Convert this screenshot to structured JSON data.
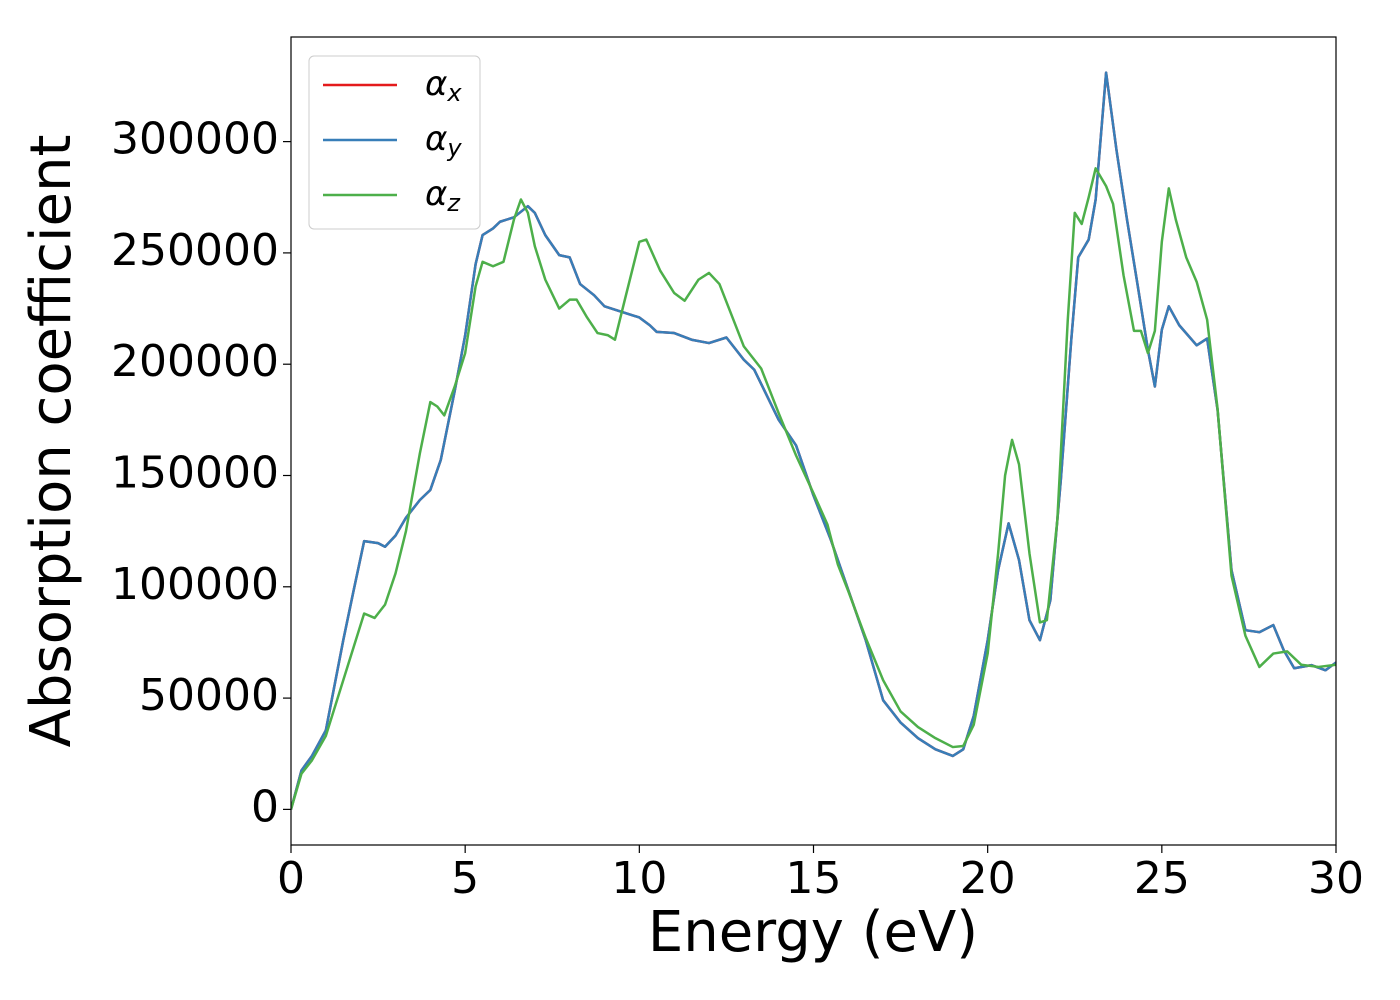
{
  "chart_data": {
    "type": "line",
    "xlabel": "Energy (eV)",
    "ylabel": "Absorption coefficient",
    "xlim": [
      0,
      30
    ],
    "xticks": [
      0,
      5,
      10,
      15,
      20,
      25,
      30
    ],
    "ylim": [
      -16000,
      347000
    ],
    "yticks": [
      0,
      50000,
      100000,
      150000,
      200000,
      250000,
      300000
    ],
    "legend": "upper left",
    "series": [
      {
        "name": "αx",
        "color": "#e41a1c",
        "x": [
          0,
          0.3,
          0.6,
          1.0,
          1.5,
          1.8,
          2.1,
          2.5,
          2.7,
          3.0,
          3.3,
          3.7,
          4.0,
          4.3,
          4.7,
          5.0,
          5.3,
          5.5,
          5.8,
          6.0,
          6.4,
          6.8,
          7.0,
          7.3,
          7.7,
          8.0,
          8.3,
          8.7,
          9.0,
          9.5,
          10.0,
          10.3,
          10.5,
          11.0,
          11.5,
          12.0,
          12.5,
          13.0,
          13.3,
          14.0,
          14.5,
          15.0,
          15.5,
          16.0,
          16.5,
          17.0,
          17.5,
          18.0,
          18.5,
          19.0,
          19.3,
          19.6,
          20.0,
          20.3,
          20.6,
          20.9,
          21.2,
          21.5,
          21.8,
          22.1,
          22.4,
          22.6,
          22.9,
          23.1,
          23.4,
          23.7,
          24.0,
          24.3,
          24.6,
          24.8,
          25.0,
          25.2,
          25.5,
          26.0,
          26.3,
          26.6,
          27.0,
          27.4,
          27.8,
          28.2,
          28.5,
          28.8,
          29.3,
          29.7,
          30.0
        ],
        "values": [
          0,
          17500,
          24000,
          35500,
          76000,
          98500,
          120500,
          119600,
          118000,
          123000,
          131000,
          139000,
          143500,
          157000,
          188000,
          213000,
          245000,
          258000,
          261000,
          264000,
          266000,
          271000,
          268000,
          258000,
          249000,
          248000,
          236000,
          231000,
          226000,
          223500,
          221000,
          217500,
          214500,
          214000,
          211000,
          209500,
          212000,
          202000,
          197500,
          175000,
          163500,
          141000,
          121000,
          98500,
          76000,
          49000,
          39000,
          32000,
          27000,
          24000,
          27000,
          42000,
          76000,
          107500,
          128500,
          112000,
          85000,
          76000,
          94000,
          148000,
          211000,
          248000,
          256000,
          274000,
          331000,
          296000,
          265000,
          236000,
          206500,
          190000,
          215500,
          226000,
          217500,
          208500,
          211500,
          179500,
          107500,
          80500,
          79600,
          82800,
          71500,
          63400,
          64800,
          62500,
          66000
        ]
      },
      {
        "name": "αy",
        "color": "#377eb8",
        "x": [
          0,
          0.3,
          0.6,
          1.0,
          1.5,
          1.8,
          2.1,
          2.5,
          2.7,
          3.0,
          3.3,
          3.7,
          4.0,
          4.3,
          4.7,
          5.0,
          5.3,
          5.5,
          5.8,
          6.0,
          6.4,
          6.8,
          7.0,
          7.3,
          7.7,
          8.0,
          8.3,
          8.7,
          9.0,
          9.5,
          10.0,
          10.3,
          10.5,
          11.0,
          11.5,
          12.0,
          12.5,
          13.0,
          13.3,
          14.0,
          14.5,
          15.0,
          15.5,
          16.0,
          16.5,
          17.0,
          17.5,
          18.0,
          18.5,
          19.0,
          19.3,
          19.6,
          20.0,
          20.3,
          20.6,
          20.9,
          21.2,
          21.5,
          21.8,
          22.1,
          22.4,
          22.6,
          22.9,
          23.1,
          23.4,
          23.7,
          24.0,
          24.3,
          24.6,
          24.8,
          25.0,
          25.2,
          25.5,
          26.0,
          26.3,
          26.6,
          27.0,
          27.4,
          27.8,
          28.2,
          28.5,
          28.8,
          29.3,
          29.7,
          30.0
        ],
        "values": [
          0,
          17500,
          24000,
          35500,
          76000,
          98500,
          120500,
          119600,
          118000,
          123000,
          131000,
          139000,
          143500,
          157000,
          188000,
          213000,
          245000,
          258000,
          261000,
          264000,
          266000,
          271000,
          268000,
          258000,
          249000,
          248000,
          236000,
          231000,
          226000,
          223500,
          221000,
          217500,
          214500,
          214000,
          211000,
          209500,
          212000,
          202000,
          197500,
          175000,
          163500,
          141000,
          121000,
          98500,
          76000,
          49000,
          39000,
          32000,
          27000,
          24000,
          27000,
          42000,
          76000,
          107500,
          128500,
          112000,
          85000,
          76000,
          94000,
          148000,
          211000,
          248000,
          256000,
          274000,
          331000,
          296000,
          265000,
          236000,
          206500,
          190000,
          215500,
          226000,
          217500,
          208500,
          211500,
          179500,
          107500,
          80500,
          79600,
          82800,
          71500,
          63400,
          64800,
          62500,
          66000
        ]
      },
      {
        "name": "αz",
        "color": "#4daf4a",
        "x": [
          0,
          0.3,
          0.6,
          1.0,
          1.5,
          1.8,
          2.1,
          2.4,
          2.7,
          3.0,
          3.3,
          3.7,
          4.0,
          4.2,
          4.4,
          4.7,
          5.0,
          5.3,
          5.5,
          5.8,
          6.1,
          6.4,
          6.6,
          6.8,
          7.0,
          7.3,
          7.7,
          8.0,
          8.2,
          8.5,
          8.8,
          9.1,
          9.3,
          9.6,
          10.0,
          10.2,
          10.6,
          11.0,
          11.3,
          11.7,
          12.0,
          12.3,
          12.7,
          13.0,
          13.5,
          14.0,
          14.5,
          15.0,
          15.4,
          15.7,
          16.0,
          16.5,
          17.0,
          17.5,
          18.0,
          18.5,
          19.0,
          19.3,
          19.6,
          20.0,
          20.3,
          20.5,
          20.7,
          20.9,
          21.2,
          21.5,
          21.7,
          22.0,
          22.3,
          22.5,
          22.7,
          22.9,
          23.1,
          23.4,
          23.6,
          23.9,
          24.2,
          24.4,
          24.6,
          24.8,
          25.0,
          25.2,
          25.4,
          25.7,
          26.0,
          26.3,
          26.6,
          27.0,
          27.4,
          27.8,
          28.2,
          28.6,
          29.0,
          29.5,
          30.0
        ],
        "values": [
          0,
          16000,
          22000,
          33000,
          58000,
          73000,
          88000,
          86000,
          92000,
          106000,
          125000,
          160000,
          183000,
          181000,
          177000,
          190000,
          205000,
          235000,
          246000,
          244000,
          246000,
          265000,
          274000,
          268000,
          253000,
          238000,
          225000,
          229000,
          229000,
          221000,
          214000,
          213000,
          211000,
          230000,
          255000,
          256000,
          242000,
          232000,
          228500,
          238000,
          241000,
          236000,
          220000,
          208000,
          198000,
          178000,
          159000,
          142000,
          128000,
          110000,
          98000,
          77000,
          58000,
          44000,
          37000,
          32000,
          28000,
          28500,
          38000,
          70000,
          115000,
          150000,
          166000,
          155000,
          115000,
          84000,
          85000,
          130000,
          220000,
          268000,
          263000,
          275000,
          288000,
          280000,
          272000,
          240000,
          215000,
          215000,
          205000,
          215000,
          255000,
          279000,
          265000,
          248000,
          237000,
          220000,
          180000,
          105000,
          78000,
          64000,
          70000,
          71000,
          65000,
          64000,
          65000
        ]
      }
    ]
  }
}
